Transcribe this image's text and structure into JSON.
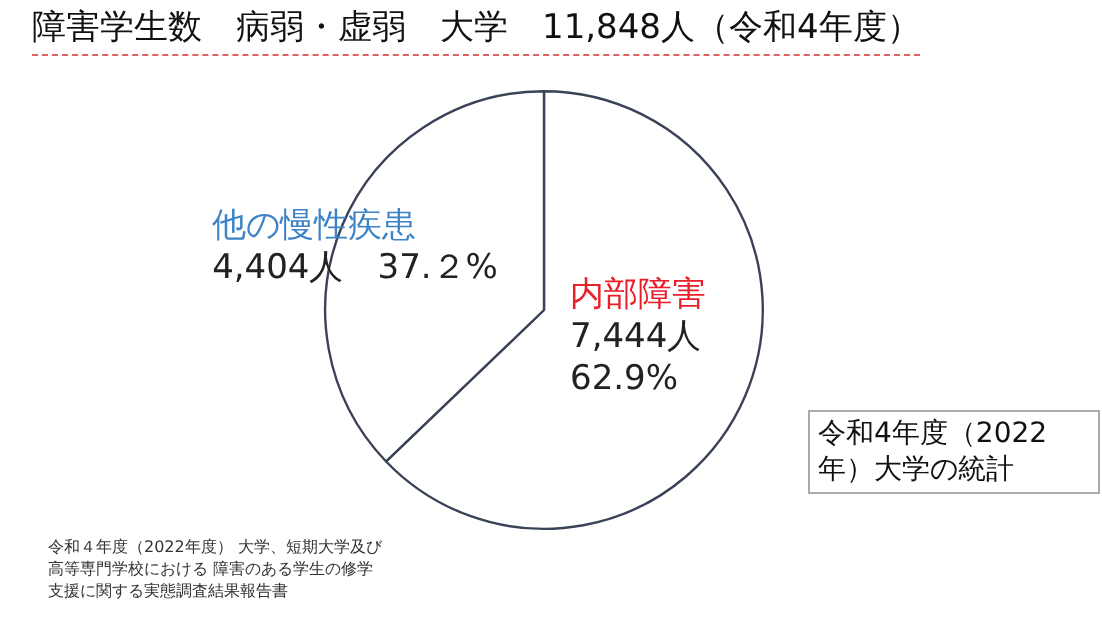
{
  "chart_data": {
    "type": "pie",
    "title": "障害学生数　病弱・虚弱　大学　11,848人（令和4年度）",
    "categories": [
      "内部障害",
      "他の慢性疾患"
    ],
    "values": [
      7444,
      4404
    ],
    "colors": [
      "#ffffff",
      "#ffffff"
    ],
    "value_labels": [
      "7,444人\n62.9%",
      "4,404人　37.２%"
    ],
    "legend": false,
    "annotations": [
      "令和4年度（2022年）大学の統計",
      "令和４年度（2022年度） 大学、短期大学及び高等専門学校における 障害のある学生の修学支援に関する実態調査結果報告書"
    ]
  }
}
